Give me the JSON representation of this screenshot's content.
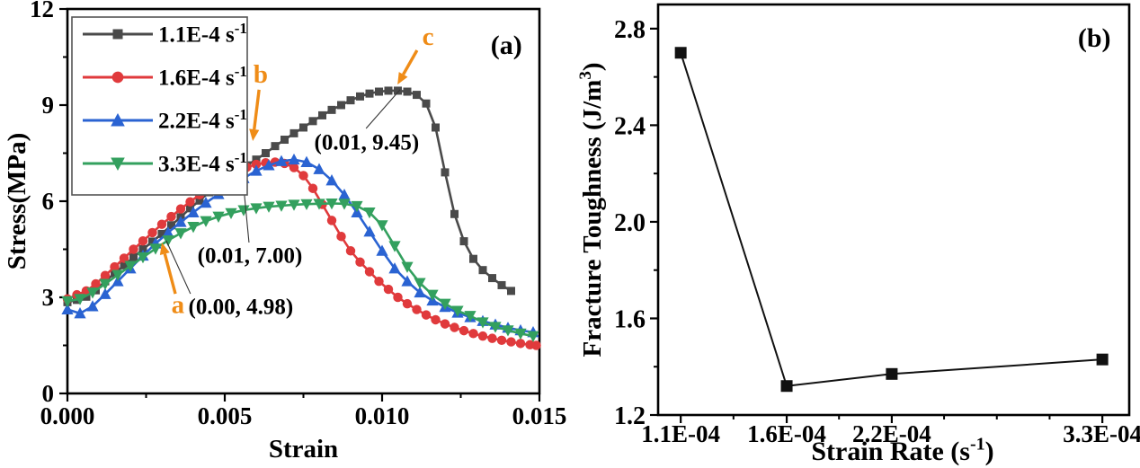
{
  "figure": {
    "background": "#ffffff",
    "frame_color": "#000000",
    "annotation_orange": "#ef8c17",
    "text_color": "#000000"
  },
  "chart_data": [
    {
      "id": "a",
      "type": "line",
      "panel_label": "(a)",
      "panel_label_pos": [
        0.93,
        0.907
      ],
      "xlabel": "Strain",
      "ylabel": "Stress(MPa)",
      "xlim": [
        0,
        0.015
      ],
      "ylim": [
        0,
        12
      ],
      "xticks_major": [
        0,
        0.005,
        0.01,
        0.015
      ],
      "xtick_labels": [
        "0.000",
        "0.005",
        "0.010",
        "0.015"
      ],
      "xticks_minor": [
        0.0025,
        0.0075,
        0.0125
      ],
      "yticks_major": [
        0,
        3,
        6,
        9,
        12
      ],
      "ytick_labels": [
        "0",
        "3",
        "6",
        "9",
        "12"
      ],
      "yticks_minor": [
        1.5,
        4.5,
        7.5,
        10.5
      ],
      "grid": false,
      "legend_position": "top-left",
      "series": [
        {
          "name": "1.1E-4 s^{-1}",
          "color": "#4a4a4a",
          "marker": "square",
          "points": [
            [
              0.0,
              2.85
            ],
            [
              0.0003,
              2.92
            ],
            [
              0.0006,
              3.02
            ],
            [
              0.0009,
              3.22
            ],
            [
              0.0012,
              3.5
            ],
            [
              0.0015,
              3.75
            ],
            [
              0.0018,
              4.0
            ],
            [
              0.0021,
              4.25
            ],
            [
              0.0024,
              4.5
            ],
            [
              0.0027,
              4.74
            ],
            [
              0.003,
              4.98
            ],
            [
              0.0033,
              5.25
            ],
            [
              0.0036,
              5.5
            ],
            [
              0.0039,
              5.78
            ],
            [
              0.0042,
              6.02
            ],
            [
              0.0045,
              6.28
            ],
            [
              0.0048,
              6.5
            ],
            [
              0.0051,
              6.72
            ],
            [
              0.0054,
              6.95
            ],
            [
              0.0057,
              7.12
            ],
            [
              0.006,
              7.3
            ],
            [
              0.0063,
              7.5
            ],
            [
              0.0066,
              7.72
            ],
            [
              0.0069,
              7.92
            ],
            [
              0.0072,
              8.12
            ],
            [
              0.0075,
              8.3
            ],
            [
              0.0078,
              8.5
            ],
            [
              0.0081,
              8.68
            ],
            [
              0.0084,
              8.85
            ],
            [
              0.0087,
              9.0
            ],
            [
              0.009,
              9.15
            ],
            [
              0.0093,
              9.27
            ],
            [
              0.0096,
              9.36
            ],
            [
              0.0099,
              9.42
            ],
            [
              0.0102,
              9.45
            ],
            [
              0.0105,
              9.45
            ],
            [
              0.0108,
              9.42
            ],
            [
              0.0111,
              9.32
            ],
            [
              0.0114,
              9.05
            ],
            [
              0.0117,
              8.3
            ],
            [
              0.012,
              6.9
            ],
            [
              0.0123,
              5.6
            ],
            [
              0.0126,
              4.75
            ],
            [
              0.0129,
              4.2
            ],
            [
              0.0132,
              3.85
            ],
            [
              0.0135,
              3.6
            ],
            [
              0.0138,
              3.38
            ],
            [
              0.0141,
              3.2
            ]
          ]
        },
        {
          "name": "1.6E-4 s^{-1}",
          "color": "#e03a3c",
          "marker": "circle",
          "points": [
            [
              0.0,
              2.95
            ],
            [
              0.0003,
              3.08
            ],
            [
              0.0006,
              3.2
            ],
            [
              0.0009,
              3.42
            ],
            [
              0.0012,
              3.68
            ],
            [
              0.0015,
              3.95
            ],
            [
              0.0018,
              4.22
            ],
            [
              0.0021,
              4.5
            ],
            [
              0.0024,
              4.76
            ],
            [
              0.0027,
              5.02
            ],
            [
              0.003,
              5.28
            ],
            [
              0.0033,
              5.52
            ],
            [
              0.0036,
              5.76
            ],
            [
              0.0039,
              5.98
            ],
            [
              0.0042,
              6.2
            ],
            [
              0.0045,
              6.4
            ],
            [
              0.0048,
              6.6
            ],
            [
              0.0051,
              6.78
            ],
            [
              0.0054,
              6.94
            ],
            [
              0.0057,
              7.06
            ],
            [
              0.006,
              7.15
            ],
            [
              0.0063,
              7.2
            ],
            [
              0.0066,
              7.22
            ],
            [
              0.0069,
              7.18
            ],
            [
              0.0072,
              7.05
            ],
            [
              0.0075,
              6.8
            ],
            [
              0.0078,
              6.4
            ],
            [
              0.0081,
              5.9
            ],
            [
              0.0084,
              5.4
            ],
            [
              0.0087,
              4.9
            ],
            [
              0.009,
              4.45
            ],
            [
              0.0093,
              4.1
            ],
            [
              0.0096,
              3.8
            ],
            [
              0.0099,
              3.5
            ],
            [
              0.0102,
              3.25
            ],
            [
              0.0105,
              3.0
            ],
            [
              0.0108,
              2.8
            ],
            [
              0.0111,
              2.62
            ],
            [
              0.0114,
              2.45
            ],
            [
              0.0117,
              2.3
            ],
            [
              0.012,
              2.17
            ],
            [
              0.0123,
              2.06
            ],
            [
              0.0126,
              1.96
            ],
            [
              0.0129,
              1.87
            ],
            [
              0.0132,
              1.79
            ],
            [
              0.0135,
              1.72
            ],
            [
              0.0138,
              1.66
            ],
            [
              0.0141,
              1.61
            ],
            [
              0.0144,
              1.56
            ],
            [
              0.0147,
              1.52
            ],
            [
              0.0149,
              1.5
            ]
          ]
        },
        {
          "name": "2.2E-4 s^{-1}",
          "color": "#2a63d2",
          "marker": "triangle-up",
          "points": [
            [
              0.0,
              2.62
            ],
            [
              0.0004,
              2.5
            ],
            [
              0.0008,
              2.72
            ],
            [
              0.0012,
              3.1
            ],
            [
              0.0016,
              3.5
            ],
            [
              0.002,
              3.9
            ],
            [
              0.0024,
              4.3
            ],
            [
              0.0028,
              4.68
            ],
            [
              0.0032,
              5.02
            ],
            [
              0.0036,
              5.35
            ],
            [
              0.004,
              5.65
            ],
            [
              0.0044,
              5.95
            ],
            [
              0.0048,
              6.22
            ],
            [
              0.0052,
              6.48
            ],
            [
              0.0056,
              6.72
            ],
            [
              0.006,
              6.95
            ],
            [
              0.0064,
              7.12
            ],
            [
              0.0068,
              7.25
            ],
            [
              0.0072,
              7.3
            ],
            [
              0.0076,
              7.22
            ],
            [
              0.008,
              7.0
            ],
            [
              0.0084,
              6.65
            ],
            [
              0.0088,
              6.2
            ],
            [
              0.0092,
              5.65
            ],
            [
              0.0096,
              5.05
            ],
            [
              0.01,
              4.45
            ],
            [
              0.0104,
              3.9
            ],
            [
              0.0108,
              3.5
            ],
            [
              0.0112,
              3.15
            ],
            [
              0.0116,
              2.9
            ],
            [
              0.012,
              2.7
            ],
            [
              0.0124,
              2.52
            ],
            [
              0.0128,
              2.38
            ],
            [
              0.0132,
              2.26
            ],
            [
              0.0136,
              2.15
            ],
            [
              0.014,
              2.05
            ],
            [
              0.0144,
              1.97
            ],
            [
              0.0148,
              1.91
            ]
          ]
        },
        {
          "name": "3.3E-4 s^{-1}",
          "color": "#33a05e",
          "marker": "triangle-down",
          "points": [
            [
              0.0,
              2.88
            ],
            [
              0.0004,
              2.95
            ],
            [
              0.0008,
              3.15
            ],
            [
              0.0012,
              3.42
            ],
            [
              0.0016,
              3.7
            ],
            [
              0.002,
              3.98
            ],
            [
              0.0024,
              4.25
            ],
            [
              0.0028,
              4.52
            ],
            [
              0.0032,
              4.78
            ],
            [
              0.0036,
              5.0
            ],
            [
              0.004,
              5.2
            ],
            [
              0.0044,
              5.38
            ],
            [
              0.0048,
              5.52
            ],
            [
              0.0052,
              5.63
            ],
            [
              0.0056,
              5.72
            ],
            [
              0.006,
              5.78
            ],
            [
              0.0064,
              5.83
            ],
            [
              0.0068,
              5.86
            ],
            [
              0.0072,
              5.89
            ],
            [
              0.0076,
              5.91
            ],
            [
              0.008,
              5.92
            ],
            [
              0.0084,
              5.93
            ],
            [
              0.0088,
              5.92
            ],
            [
              0.0092,
              5.85
            ],
            [
              0.0096,
              5.65
            ],
            [
              0.01,
              5.25
            ],
            [
              0.0104,
              4.6
            ],
            [
              0.0108,
              3.95
            ],
            [
              0.0112,
              3.45
            ],
            [
              0.0116,
              3.08
            ],
            [
              0.012,
              2.8
            ],
            [
              0.0124,
              2.58
            ],
            [
              0.0128,
              2.42
            ],
            [
              0.0132,
              2.22
            ],
            [
              0.0136,
              2.08
            ],
            [
              0.014,
              1.97
            ],
            [
              0.0144,
              1.87
            ],
            [
              0.0148,
              1.79
            ]
          ]
        }
      ],
      "annotations": {
        "labels": [
          {
            "id": "a-label",
            "text": "a",
            "at": [
              0.00351,
              2.78
            ],
            "color": "#ef8c17",
            "size": 29
          },
          {
            "id": "a-coordinates",
            "text": "(0.00, 4.98)",
            "at": [
              0.00551,
              2.72
            ],
            "color": "#000000",
            "size": 25
          },
          {
            "id": "b-label",
            "text": "b",
            "at": [
              0.00614,
              9.98
            ],
            "color": "#ef8c17",
            "size": 29
          },
          {
            "id": "b-coordinates",
            "text": "(0.01, 7.00)",
            "at": [
              0.0058,
              4.32
            ],
            "color": "#000000",
            "size": 25
          },
          {
            "id": "c-label",
            "text": "c",
            "at": [
              0.01146,
              11.16
            ],
            "color": "#ef8c17",
            "size": 29
          },
          {
            "id": "c-coordinates",
            "text": "(0.01, 9.45)",
            "at": [
              0.00951,
              7.85
            ],
            "color": "#000000",
            "size": 25
          }
        ],
        "arrows": [
          {
            "id": "a-arrow",
            "from": [
              0.00343,
              3.11
            ],
            "to": [
              0.003,
              4.71
            ]
          },
          {
            "id": "b-arrow",
            "from": [
              0.00609,
              9.48
            ],
            "to": [
              0.00589,
              7.88
            ]
          },
          {
            "id": "c-arrow",
            "from": [
              0.01111,
              10.71
            ],
            "to": [
              0.01049,
              9.64
            ]
          }
        ],
        "leader_lines": [
          {
            "id": "a-leader",
            "from": [
              0.00391,
              3.11
            ],
            "to": [
              0.00314,
              4.77
            ]
          },
          {
            "id": "b-leader",
            "from": [
              0.00577,
              4.71
            ],
            "to": [
              0.00557,
              6.76
            ]
          },
          {
            "id": "c-leader",
            "from": [
              0.00949,
              8.27
            ],
            "to": [
              0.01057,
              9.48
            ]
          }
        ]
      }
    },
    {
      "id": "b",
      "type": "scatter",
      "panel_label": "(b)",
      "panel_label_pos": [
        0.926,
        0.919
      ],
      "xlabel": "Strain Rate (s^{-1})",
      "ylabel": "Fracture Toughness (J/m^{3})",
      "ylim": [
        1.2,
        2.9
      ],
      "yticks_major": [
        1.2,
        1.6,
        2.0,
        2.4,
        2.8
      ],
      "ytick_labels": [
        "1.2",
        "1.6",
        "2.0",
        "2.4",
        "2.8"
      ],
      "yticks_minor": [
        1.4,
        1.8,
        2.2,
        2.6
      ],
      "categories": [
        "1.1E-04",
        "1.6E-04",
        "2.2E-04",
        "3.3E-04"
      ],
      "values": [
        2.7,
        1.32,
        1.37,
        1.43
      ],
      "x_fractions_major": [
        0.048,
        0.273,
        0.496,
        0.943
      ],
      "x_fractions_minor": [
        0.16,
        0.384,
        0.607,
        0.719,
        0.831
      ],
      "marker": "square",
      "color": "#111111",
      "grid": false
    }
  ]
}
